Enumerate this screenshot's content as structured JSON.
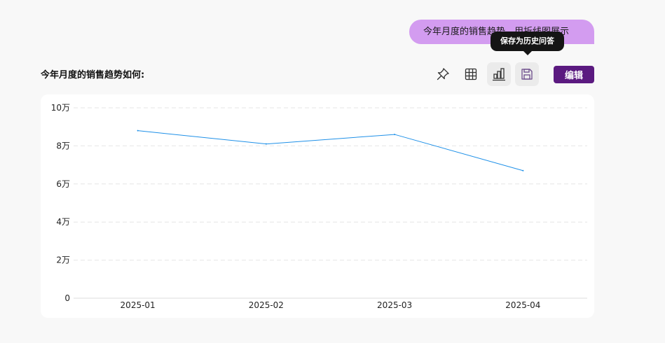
{
  "message": {
    "text": "今年月度的销售趋势，用折线图展示"
  },
  "tooltip": {
    "text": "保存为历史问答"
  },
  "question": {
    "text": "今年月度的销售趋势如何:"
  },
  "toolbar": {
    "icons": [
      "pin-icon",
      "table-icon",
      "chart-icon",
      "save-icon"
    ],
    "edit_label": "编辑"
  },
  "colors": {
    "accent": "#5b1a80",
    "bubble": "#d39cf0",
    "line": "#1e90e8"
  },
  "chart_data": {
    "type": "line",
    "categories": [
      "2025-01",
      "2025-02",
      "2025-03",
      "2025-04"
    ],
    "series": [
      {
        "values": [
          88000,
          81000,
          86000,
          67000
        ]
      }
    ],
    "ylim": [
      0,
      100000
    ],
    "yticks": [
      0,
      20000,
      40000,
      60000,
      80000,
      100000
    ],
    "ytick_labels": [
      "0",
      "2万",
      "4万",
      "6万",
      "8万",
      "10万"
    ],
    "grid": true,
    "title": "",
    "xlabel": "",
    "ylabel": ""
  }
}
